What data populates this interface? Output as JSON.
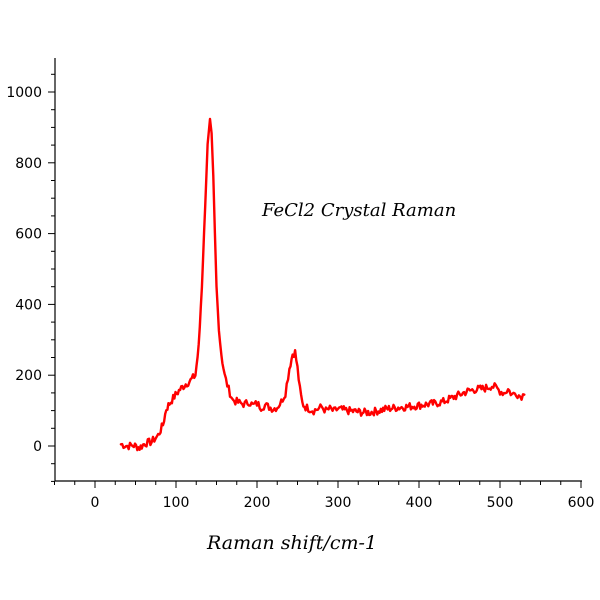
{
  "chart_data": {
    "type": "line",
    "title": "",
    "annotation": "FeCl2 Crystal Raman",
    "xlabel": "Raman shift/cm-1",
    "ylabel": "",
    "xlim": [
      -50,
      600
    ],
    "ylim": [
      -100,
      1100
    ],
    "xticks": [
      0,
      100,
      200,
      300,
      400,
      500,
      600
    ],
    "yticks": [
      0,
      200,
      400,
      600,
      800,
      1000
    ],
    "series_color": "#ff0000",
    "series": [
      {
        "x": [
          32,
          40,
          48,
          55,
          62,
          70,
          78,
          84,
          88,
          92,
          98,
          105,
          112,
          118,
          124,
          128,
          132,
          136,
          139,
          142,
          144,
          146,
          148,
          150,
          153,
          156,
          160,
          165,
          170,
          175,
          180,
          185,
          190,
          195,
          200,
          205,
          210,
          215,
          220,
          225,
          230,
          235,
          240,
          244,
          247,
          250,
          253,
          256,
          260,
          265,
          270,
          275,
          280,
          285,
          290,
          295,
          300,
          310,
          320,
          330,
          340,
          350,
          360,
          370,
          380,
          390,
          400,
          410,
          420,
          430,
          440,
          450,
          460,
          470,
          480,
          490,
          495,
          500,
          505,
          510,
          515,
          520,
          525,
          530
        ],
        "y": [
          5,
          0,
          2,
          -5,
          8,
          12,
          30,
          60,
          105,
          120,
          140,
          160,
          175,
          185,
          200,
          280,
          450,
          680,
          850,
          920,
          880,
          760,
          600,
          450,
          330,
          260,
          200,
          160,
          130,
          125,
          120,
          118,
          125,
          115,
          120,
          110,
          115,
          110,
          105,
          110,
          125,
          150,
          220,
          260,
          265,
          220,
          160,
          120,
          110,
          105,
          100,
          105,
          110,
          100,
          105,
          98,
          105,
          100,
          98,
          95,
          95,
          100,
          105,
          108,
          110,
          112,
          115,
          118,
          120,
          125,
          135,
          145,
          155,
          160,
          162,
          170,
          165,
          155,
          150,
          160,
          145,
          150,
          140,
          145
        ]
      }
    ]
  }
}
